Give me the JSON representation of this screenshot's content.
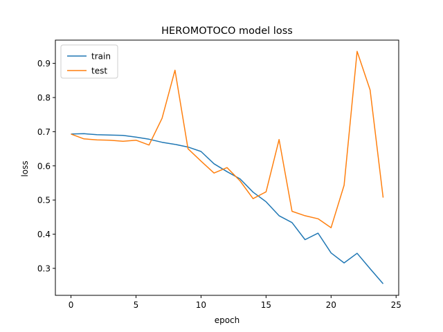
{
  "chart_data": {
    "type": "line",
    "title": "HEROMOTOCO model loss",
    "xlabel": "epoch",
    "ylabel": "loss",
    "xlim": [
      -1.2,
      25.2
    ],
    "ylim": [
      0.221,
      0.968
    ],
    "x_ticks": [
      0,
      5,
      10,
      15,
      20,
      25
    ],
    "x_tick_labels": [
      "0",
      "5",
      "10",
      "15",
      "20",
      "25"
    ],
    "y_ticks": [
      0.3,
      0.4,
      0.5,
      0.6,
      0.7,
      0.8,
      0.9
    ],
    "y_tick_labels": [
      "0.3",
      "0.4",
      "0.5",
      "0.6",
      "0.7",
      "0.8",
      "0.9"
    ],
    "legend_position": "top-left",
    "grid": false,
    "x": [
      0,
      1,
      2,
      3,
      4,
      5,
      6,
      7,
      8,
      9,
      10,
      11,
      12,
      13,
      14,
      15,
      16,
      17,
      18,
      19,
      20,
      21,
      22,
      23,
      24
    ],
    "series": [
      {
        "name": "train",
        "color": "#1f77b4",
        "values": [
          0.693,
          0.694,
          0.691,
          0.69,
          0.689,
          0.684,
          0.678,
          0.669,
          0.663,
          0.655,
          0.642,
          0.606,
          0.583,
          0.562,
          0.523,
          0.495,
          0.454,
          0.434,
          0.384,
          0.403,
          0.345,
          0.316,
          0.344,
          0.299,
          0.255
        ]
      },
      {
        "name": "test",
        "color": "#ff7f0e",
        "values": [
          0.693,
          0.679,
          0.676,
          0.675,
          0.672,
          0.675,
          0.661,
          0.739,
          0.88,
          0.65,
          0.614,
          0.579,
          0.595,
          0.556,
          0.504,
          0.524,
          0.677,
          0.467,
          0.454,
          0.445,
          0.419,
          0.543,
          0.935,
          0.822,
          0.507
        ]
      }
    ]
  }
}
